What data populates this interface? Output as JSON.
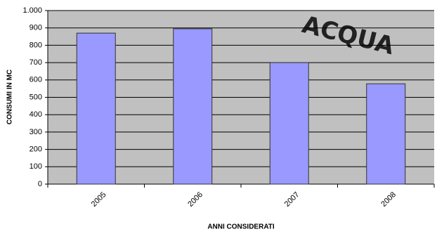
{
  "chart_data": {
    "type": "bar",
    "title": "ACQUA",
    "x_label": "ANNI CONSIDERATI",
    "y_label": "CONSUMI IN MC",
    "categories": [
      "2005",
      "2006",
      "2007",
      "2008"
    ],
    "values": [
      870,
      895,
      700,
      578
    ],
    "color": "#9999ff",
    "ylim": [
      0,
      1000
    ],
    "yticks": [
      0,
      100,
      200,
      300,
      400,
      500,
      600,
      700,
      800,
      900,
      {
        "value": 1000,
        "label": "1.000"
      }
    ],
    "grid": true
  }
}
